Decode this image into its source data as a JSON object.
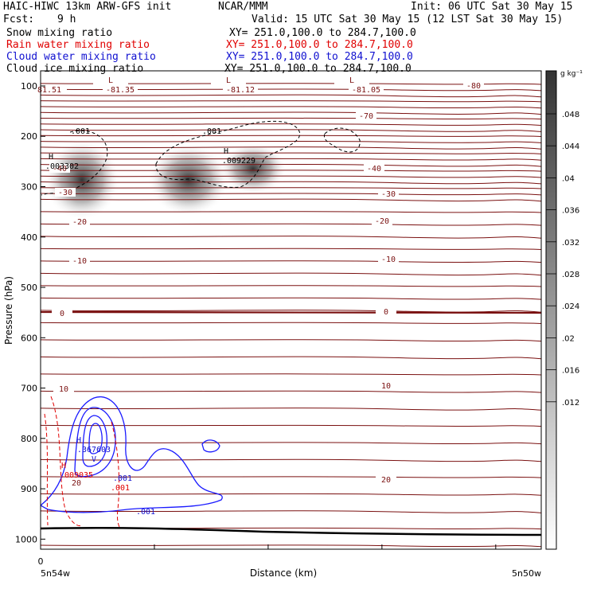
{
  "header": {
    "title_left": "HAIC-HIWC 13km ARW-GFS init",
    "title_center": "NCAR/MMM",
    "init": "Init: 06 UTC Sat 30 May 15",
    "fcst_label": "Fcst:",
    "fcst_value": "9 h",
    "valid": "Valid: 15 UTC Sat 30 May 15 (12 LST Sat 30 May 15)",
    "fields": [
      {
        "name": "Snow mixing ratio",
        "xy": "XY= 251.0,100.0 to 284.7,100.0",
        "color": "#000000"
      },
      {
        "name": "Rain water mixing ratio",
        "xy": "XY= 251.0,100.0 to 284.7,100.0",
        "color": "#e00000"
      },
      {
        "name": "Cloud water mixing ratio",
        "xy": "XY= 251.0,100.0 to 284.7,100.0",
        "color": "#1010d0"
      },
      {
        "name": "Cloud ice mixing ratio",
        "xy": "XY= 251.0,100.0 to 284.7,100.0",
        "color": "#000000"
      }
    ]
  },
  "chart_data": {
    "type": "contour-cross-section",
    "ylabel": "Pressure (hPa)",
    "xlabel": "Distance (km)",
    "yticks": [
      100,
      200,
      300,
      400,
      500,
      600,
      700,
      800,
      900,
      1000
    ],
    "ylim": [
      1020,
      70
    ],
    "x_start_label": "5n54w",
    "x_end_label": "5n50w",
    "x_zero_label": "0",
    "colorbar": {
      "unit": "g kg⁻¹",
      "labels": [
        ".048",
        ".044",
        ".04",
        ".036",
        ".032",
        ".028",
        ".024",
        ".02",
        ".016",
        ".012"
      ],
      "shading_color": "#333333"
    },
    "temperature_contours": {
      "color": "#7a1010",
      "interval": 5,
      "levels_labeled": [
        {
          "value": "-80",
          "p": 108
        },
        {
          "value": "-70",
          "p": 140
        },
        {
          "value": "-40",
          "p": 246
        },
        {
          "value": "-30",
          "p": 292
        },
        {
          "value": "-20",
          "p": 354
        },
        {
          "value": "-10",
          "p": 427
        },
        {
          "value": "0",
          "p": 549
        },
        {
          "value": "10",
          "p": 722
        },
        {
          "value": "20",
          "p": 900
        }
      ],
      "extrema_labels": [
        {
          "text": "L",
          "p": 82,
          "x": 0.06
        },
        {
          "text": "L",
          "p": 82,
          "x": 0.25
        },
        {
          "text": "L",
          "p": 82,
          "x": 0.68
        },
        {
          "text": "81.51",
          "p": 100,
          "x": 0.0
        },
        {
          "text": "-81.35",
          "p": 100,
          "x": 0.24
        },
        {
          "text": "-81.12",
          "p": 100,
          "x": 0.67
        },
        {
          "text": "-81.05",
          "p": 100,
          "x": 1.0
        }
      ]
    },
    "ice_contours": {
      "color": "#000000",
      "level_label": ".001",
      "max_labels": [
        {
          "text": "H",
          "p": 230
        },
        {
          "text": ".003302",
          "p": 250
        },
        {
          "text": "H",
          "p": 213
        },
        {
          "text": ".009229",
          "p": 232
        }
      ]
    },
    "cloud_water_contours": {
      "color": "#1010d0",
      "level_label": ".001",
      "max_labels": [
        {
          "text": "H",
          "p": 817
        },
        {
          "text": ".367603",
          "p": 834
        },
        {
          "text": "V",
          "p": 853
        }
      ]
    },
    "rain_contours": {
      "color": "#e00000",
      "level_label": ".001",
      "max_labels": [
        {
          "text": "H",
          "p": 880
        },
        {
          "text": ".009035",
          "p": 898
        }
      ]
    }
  }
}
